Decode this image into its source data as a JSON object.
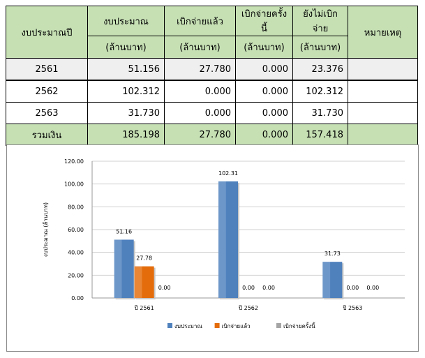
{
  "table": {
    "headers": {
      "year": "งบประมาณปี",
      "budget": "งบประมาณ",
      "budget_unit": "(ล้านบาท)",
      "disbursed": "เบิกจ่ายแล้ว",
      "disbursed_unit": "(ล้านบาท)",
      "this_time": "เบิกจ่ายครั้งนี้",
      "this_time_unit": "(ล้านบาท)",
      "remaining": "ยังไม่เบิกจ่าย",
      "remaining_unit": "(ล้านบาท)",
      "note": "หมายเหตุ"
    },
    "rows": [
      {
        "year": "2561",
        "budget": "51.156",
        "disbursed": "27.780",
        "this_time": "0.000",
        "remaining": "23.376",
        "note": ""
      },
      {
        "year": "2562",
        "budget": "102.312",
        "disbursed": "0.000",
        "this_time": "0.000",
        "remaining": "102.312",
        "note": ""
      },
      {
        "year": "2563",
        "budget": "31.730",
        "disbursed": "0.000",
        "this_time": "0.000",
        "remaining": "31.730",
        "note": ""
      }
    ],
    "total": {
      "label": "รวมเงิน",
      "budget": "185.198",
      "disbursed": "27.780",
      "this_time": "0.000",
      "remaining": "157.418",
      "note": ""
    }
  },
  "chart_data": {
    "type": "bar",
    "categories": [
      "ปี 2561",
      "ปี 2562",
      "ปี 2563"
    ],
    "series": [
      {
        "name": "งบประมาณ",
        "values": [
          51.16,
          102.31,
          31.73
        ],
        "labels": [
          "51.16",
          "102.31",
          "31.73"
        ],
        "color": "#4f81bd"
      },
      {
        "name": "เบิกจ่ายแล้ว",
        "values": [
          27.78,
          0.0,
          0.0
        ],
        "labels": [
          "27.78",
          "0.00",
          "0.00"
        ],
        "color": "#e46c0a"
      },
      {
        "name": "เบิกจ่ายครั้งนี้",
        "values": [
          0.0,
          0.0,
          0.0
        ],
        "labels": [
          "0.00",
          "0.00",
          "0.00"
        ],
        "color": "#a5a5a5"
      }
    ],
    "ylabel": "งบประมาณ (ล้านบาท)",
    "xlabel": "",
    "ylim": [
      0,
      120
    ],
    "yticks": [
      "0.00",
      "20.00",
      "40.00",
      "60.00",
      "80.00",
      "100.00",
      "120.00"
    ],
    "grid": true,
    "legend": "bottom"
  }
}
